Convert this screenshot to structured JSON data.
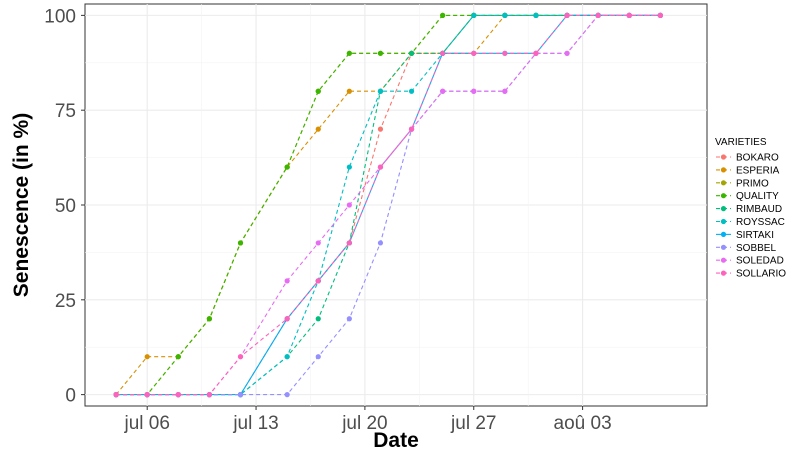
{
  "chart_data": {
    "type": "line",
    "xlabel": "Date",
    "ylabel": "Senescence (in %)",
    "legend_title": "VARIETIES",
    "legend_position": "right",
    "grid": true,
    "x_ticks": [
      {
        "date": "2023-07-06",
        "label": "jul 06"
      },
      {
        "date": "2023-07-13",
        "label": "jul 13"
      },
      {
        "date": "2023-07-20",
        "label": "jul 20"
      },
      {
        "date": "2023-07-27",
        "label": "jul 27"
      },
      {
        "date": "2023-08-03",
        "label": "aoû 03"
      }
    ],
    "y_ticks": [
      0,
      25,
      50,
      75,
      100
    ],
    "xlim": [
      "2023-07-02",
      "2023-08-11"
    ],
    "ylim": [
      -3,
      103
    ],
    "series": [
      {
        "name": "BOKARO",
        "color": "#F8766D",
        "dash": true,
        "x": [
          "2023-07-04",
          "2023-07-06",
          "2023-07-08",
          "2023-07-10",
          "2023-07-12",
          "2023-07-15",
          "2023-07-17",
          "2023-07-19",
          "2023-07-21",
          "2023-07-23",
          "2023-07-25",
          "2023-07-27",
          "2023-07-29",
          "2023-07-31",
          "2023-08-02",
          "2023-08-04",
          "2023-08-06",
          "2023-08-08"
        ],
        "y": [
          0,
          0,
          0,
          0,
          0,
          20,
          30,
          40,
          70,
          90,
          90,
          100,
          100,
          100,
          100,
          100,
          100,
          100
        ]
      },
      {
        "name": "ESPERIA",
        "color": "#D89000",
        "dash": true,
        "x": [
          "2023-07-04",
          "2023-07-06",
          "2023-07-08",
          "2023-07-10",
          "2023-07-12",
          "2023-07-15",
          "2023-07-17",
          "2023-07-19",
          "2023-07-21",
          "2023-07-23",
          "2023-07-25",
          "2023-07-27",
          "2023-07-29",
          "2023-07-31",
          "2023-08-02",
          "2023-08-04",
          "2023-08-06",
          "2023-08-08"
        ],
        "y": [
          0,
          10,
          10,
          20,
          40,
          60,
          70,
          80,
          80,
          90,
          90,
          90,
          100,
          100,
          100,
          100,
          100,
          100
        ]
      },
      {
        "name": "PRIMO",
        "color": "#A3A500",
        "dash": true,
        "x": [
          "2023-07-04",
          "2023-07-06",
          "2023-07-08",
          "2023-07-10",
          "2023-07-12",
          "2023-07-15",
          "2023-07-17",
          "2023-07-19",
          "2023-07-21",
          "2023-07-23",
          "2023-07-25",
          "2023-07-27",
          "2023-07-29",
          "2023-07-31",
          "2023-08-02",
          "2023-08-04",
          "2023-08-06",
          "2023-08-08"
        ],
        "y": [
          0,
          0,
          10,
          20,
          40,
          60,
          80,
          90,
          90,
          90,
          100,
          100,
          100,
          100,
          100,
          100,
          100,
          100
        ]
      },
      {
        "name": "QUALITY",
        "color": "#39B600",
        "dash": true,
        "x": [
          "2023-07-04",
          "2023-07-06",
          "2023-07-08",
          "2023-07-10",
          "2023-07-12",
          "2023-07-15",
          "2023-07-17",
          "2023-07-19",
          "2023-07-21",
          "2023-07-23",
          "2023-07-25",
          "2023-07-27",
          "2023-07-29",
          "2023-07-31",
          "2023-08-02",
          "2023-08-04",
          "2023-08-06",
          "2023-08-08"
        ],
        "y": [
          0,
          0,
          10,
          20,
          40,
          60,
          80,
          90,
          90,
          90,
          100,
          100,
          100,
          100,
          100,
          100,
          100,
          100
        ]
      },
      {
        "name": "RIMBAUD",
        "color": "#00BF7D",
        "dash": true,
        "x": [
          "2023-07-04",
          "2023-07-06",
          "2023-07-08",
          "2023-07-10",
          "2023-07-12",
          "2023-07-15",
          "2023-07-17",
          "2023-07-19",
          "2023-07-21",
          "2023-07-23",
          "2023-07-25",
          "2023-07-27",
          "2023-07-29",
          "2023-07-31",
          "2023-08-02",
          "2023-08-04",
          "2023-08-06",
          "2023-08-08"
        ],
        "y": [
          0,
          0,
          0,
          0,
          0,
          10,
          20,
          40,
          80,
          90,
          90,
          100,
          100,
          100,
          100,
          100,
          100,
          100
        ]
      },
      {
        "name": "ROYSSAC",
        "color": "#00BFC4",
        "dash": true,
        "x": [
          "2023-07-04",
          "2023-07-06",
          "2023-07-08",
          "2023-07-10",
          "2023-07-12",
          "2023-07-15",
          "2023-07-17",
          "2023-07-19",
          "2023-07-21",
          "2023-07-23",
          "2023-07-25",
          "2023-07-27",
          "2023-07-29",
          "2023-07-31",
          "2023-08-02",
          "2023-08-04",
          "2023-08-06",
          "2023-08-08"
        ],
        "y": [
          0,
          0,
          0,
          0,
          0,
          10,
          30,
          60,
          80,
          80,
          90,
          100,
          100,
          100,
          100,
          100,
          100,
          100
        ]
      },
      {
        "name": "SIRTAKI",
        "color": "#00B0F6",
        "dash": false,
        "x": [
          "2023-07-04",
          "2023-07-06",
          "2023-07-08",
          "2023-07-10",
          "2023-07-12",
          "2023-07-15",
          "2023-07-17",
          "2023-07-19",
          "2023-07-21",
          "2023-07-23",
          "2023-07-25",
          "2023-07-27",
          "2023-07-29",
          "2023-07-31",
          "2023-08-02",
          "2023-08-04",
          "2023-08-06",
          "2023-08-08"
        ],
        "y": [
          0,
          0,
          0,
          0,
          0,
          20,
          30,
          40,
          60,
          70,
          90,
          90,
          90,
          90,
          100,
          100,
          100,
          100
        ]
      },
      {
        "name": "SOBBEL",
        "color": "#9590FF",
        "dash": true,
        "x": [
          "2023-07-04",
          "2023-07-06",
          "2023-07-08",
          "2023-07-10",
          "2023-07-12",
          "2023-07-15",
          "2023-07-17",
          "2023-07-19",
          "2023-07-21",
          "2023-07-23",
          "2023-07-25",
          "2023-07-27",
          "2023-07-29",
          "2023-07-31",
          "2023-08-02",
          "2023-08-04",
          "2023-08-06",
          "2023-08-08"
        ],
        "y": [
          0,
          0,
          0,
          0,
          0,
          0,
          10,
          20,
          40,
          70,
          80,
          80,
          80,
          90,
          90,
          100,
          100,
          100
        ]
      },
      {
        "name": "SOLEDAD",
        "color": "#E76BF3",
        "dash": true,
        "x": [
          "2023-07-04",
          "2023-07-06",
          "2023-07-08",
          "2023-07-10",
          "2023-07-12",
          "2023-07-15",
          "2023-07-17",
          "2023-07-19",
          "2023-07-21",
          "2023-07-23",
          "2023-07-25",
          "2023-07-27",
          "2023-07-29",
          "2023-07-31",
          "2023-08-02",
          "2023-08-04",
          "2023-08-06",
          "2023-08-08"
        ],
        "y": [
          0,
          0,
          0,
          0,
          10,
          30,
          40,
          50,
          60,
          70,
          80,
          80,
          80,
          90,
          90,
          100,
          100,
          100
        ]
      },
      {
        "name": "SOLLARIO",
        "color": "#FF62BC",
        "dash": true,
        "x": [
          "2023-07-04",
          "2023-07-06",
          "2023-07-08",
          "2023-07-10",
          "2023-07-12",
          "2023-07-15",
          "2023-07-17",
          "2023-07-19",
          "2023-07-21",
          "2023-07-23",
          "2023-07-25",
          "2023-07-27",
          "2023-07-29",
          "2023-07-31",
          "2023-08-02",
          "2023-08-04",
          "2023-08-06",
          "2023-08-08"
        ],
        "y": [
          0,
          0,
          0,
          0,
          10,
          20,
          30,
          40,
          60,
          70,
          90,
          90,
          90,
          90,
          100,
          100,
          100,
          100
        ]
      }
    ]
  }
}
